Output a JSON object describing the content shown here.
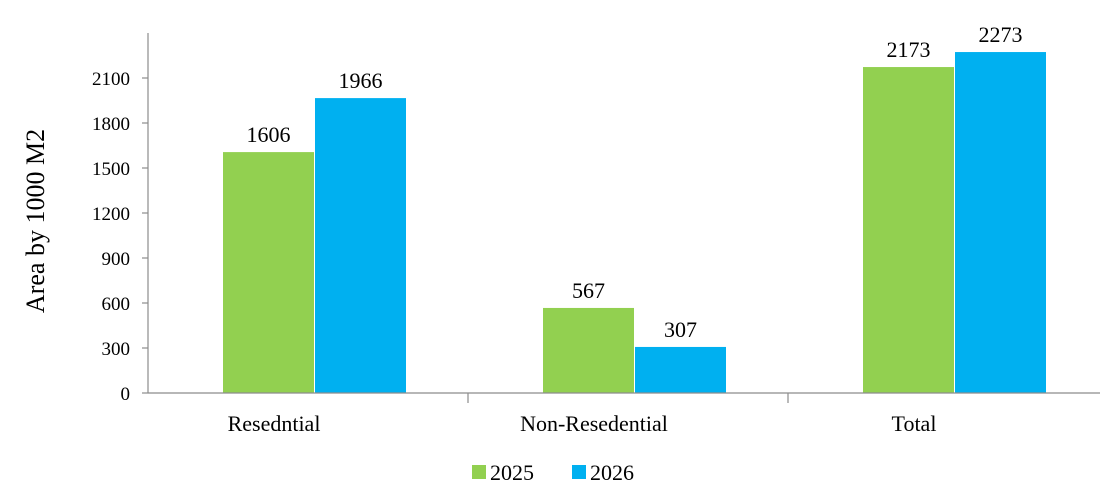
{
  "chart_data": {
    "type": "bar",
    "categories": [
      "Resedntial",
      "Non-Resedential",
      "Total"
    ],
    "series": [
      {
        "name": "2025",
        "values": [
          1606,
          567,
          2173
        ],
        "color": "#92d050"
      },
      {
        "name": "2026",
        "values": [
          1966,
          307,
          2273
        ],
        "color": "#00b0f0"
      }
    ],
    "ylabel": "Area by 1000 M2",
    "xlabel": "",
    "ylim": [
      0,
      2400
    ],
    "yticks": [
      0,
      300,
      600,
      900,
      1200,
      1500,
      1800,
      2100
    ],
    "grid": false,
    "legend_position": "bottom"
  }
}
